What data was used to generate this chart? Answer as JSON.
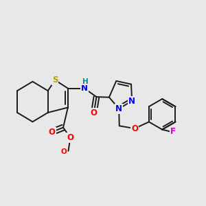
{
  "bg_color": "#e8e8e8",
  "bond_color": "#1a1a1a",
  "bond_width": 1.4,
  "dbo": 0.015,
  "atom_colors": {
    "S": "#b8a000",
    "O": "#ff0000",
    "N": "#0000ee",
    "F": "#cc00cc",
    "H_teal": "#008b8b",
    "C": "#1a1a1a"
  },
  "fs": 8.5,
  "fig_bg": "#e8e8e8"
}
